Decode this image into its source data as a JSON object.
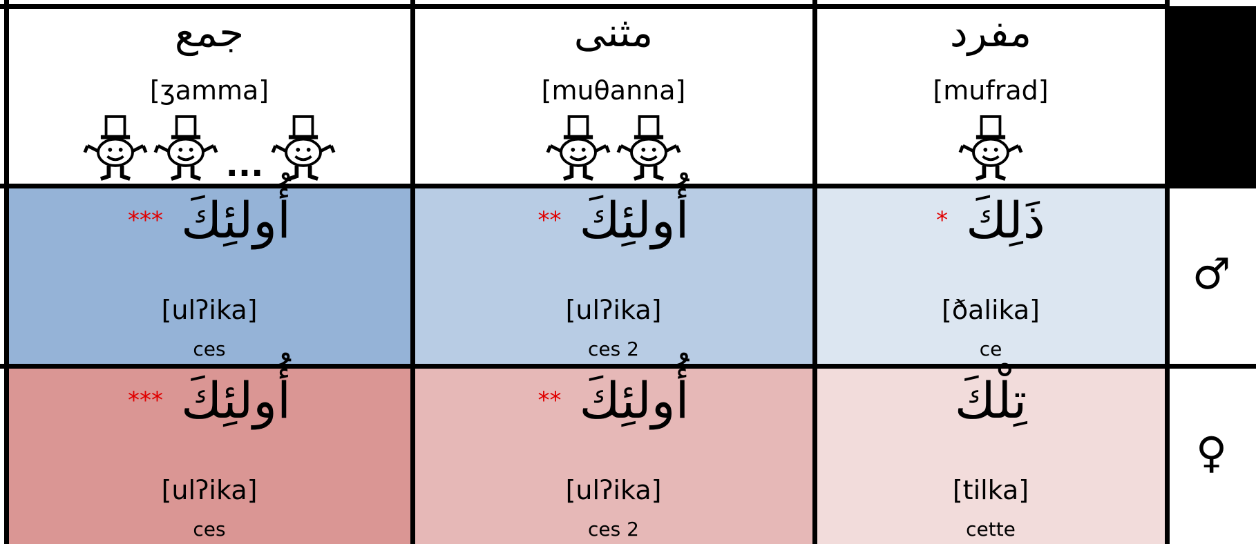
{
  "header": {
    "columns": [
      {
        "arabic": "جمع",
        "transliteration": "[ʒamma]",
        "ellipsis": "..."
      },
      {
        "arabic": "مثنى",
        "transliteration": "[muθanna]"
      },
      {
        "arabic": "مفرد",
        "transliteration": "[mufrad]"
      }
    ]
  },
  "rows": [
    {
      "symbol": "♂",
      "cells": [
        {
          "arabic": "أُولئِكَ",
          "marker": "***",
          "transliteration": "[ulʔika]",
          "french": "ces"
        },
        {
          "arabic": "أُولئِكَ",
          "marker": "**",
          "transliteration": "[ulʔika]",
          "french": "ces 2"
        },
        {
          "arabic": "ذَلِكَ",
          "marker": "*",
          "transliteration": "[ðalika]",
          "french": "ce"
        }
      ]
    },
    {
      "symbol": "♀",
      "cells": [
        {
          "arabic": "أُولئِكَ",
          "marker": "***",
          "transliteration": "[ulʔika]",
          "french": "ces"
        },
        {
          "arabic": "أُولئِكَ",
          "marker": "**",
          "transliteration": "[ulʔika]",
          "french": "ces 2"
        },
        {
          "arabic": "تِلْكَ",
          "transliteration": "[tilka]",
          "french": "cette"
        }
      ]
    }
  ]
}
